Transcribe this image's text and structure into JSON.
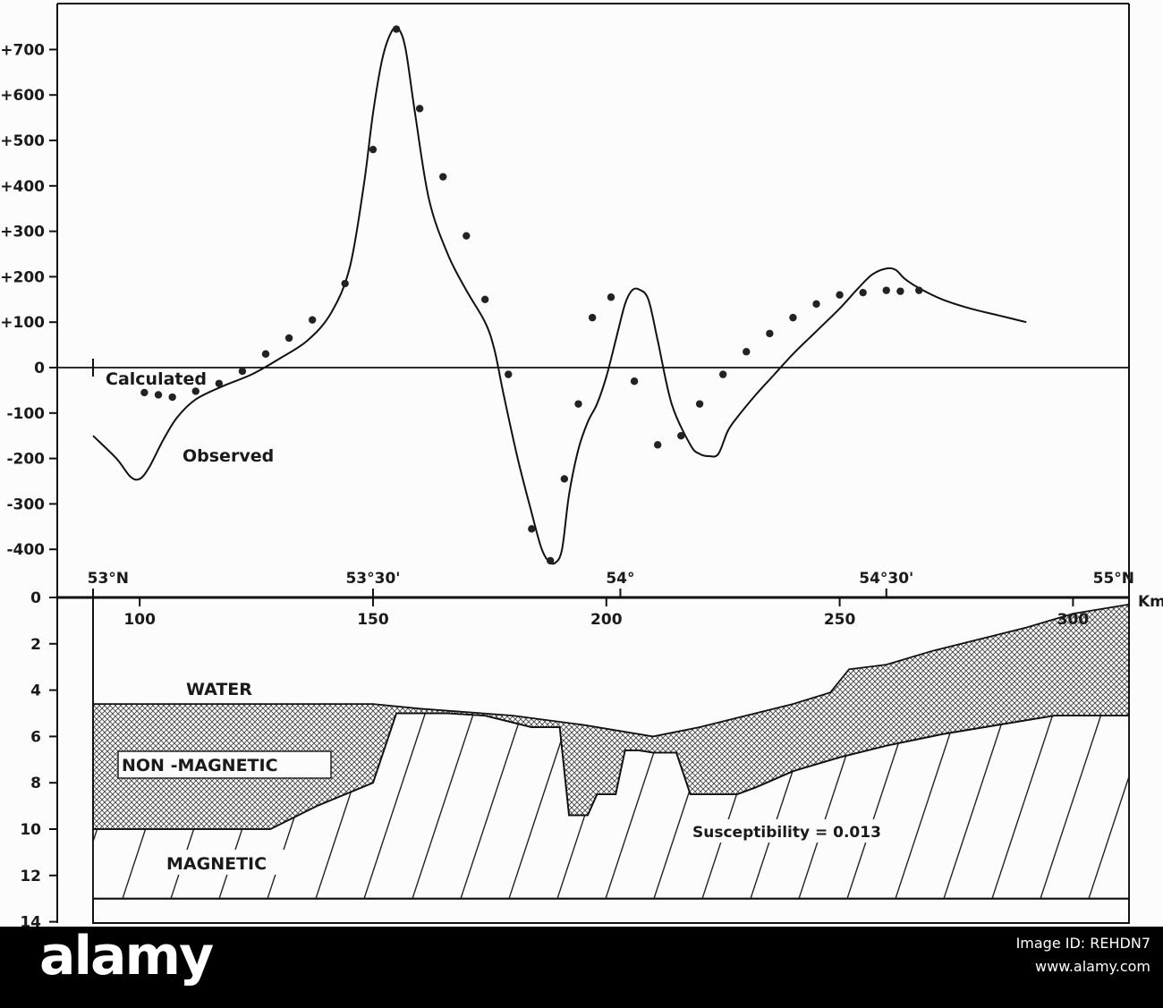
{
  "chart_data": [
    {
      "type": "line",
      "title": "",
      "xlabel": "",
      "ylabel": "",
      "ylim": [
        -450,
        750
      ],
      "xlim": [
        90,
        312
      ],
      "y_ticks": [
        "+700",
        "+600",
        "+500",
        "+400",
        "+300",
        "+200",
        "+100",
        "0",
        "-100",
        "-200",
        "-300",
        "-400"
      ],
      "y_tick_values": [
        700,
        600,
        500,
        400,
        300,
        200,
        100,
        0,
        -100,
        -200,
        -300,
        -400
      ],
      "annotations": [
        "Calculated",
        "Observed"
      ],
      "series": [
        {
          "name": "Observed",
          "style": "line",
          "x": [
            90,
            95,
            98,
            100,
            102,
            105,
            108,
            112,
            118,
            124,
            130,
            136,
            141,
            145,
            148,
            150,
            152,
            154,
            155.5,
            157,
            159,
            162,
            166,
            170,
            174,
            176,
            178,
            181,
            184,
            186,
            187.5,
            189,
            190.5,
            192,
            194,
            196,
            198,
            200,
            202,
            204,
            205.5,
            207,
            209,
            211,
            214,
            218,
            220,
            222,
            224,
            226,
            228,
            232,
            236,
            240,
            245,
            250,
            254,
            257,
            260,
            262,
            264,
            267,
            272,
            278,
            284,
            290
          ],
          "y": [
            -150,
            -200,
            -240,
            -245,
            -220,
            -160,
            -110,
            -70,
            -40,
            -15,
            20,
            60,
            120,
            220,
            400,
            560,
            680,
            740,
            745,
            700,
            560,
            370,
            250,
            170,
            100,
            40,
            -60,
            -200,
            -320,
            -395,
            -425,
            -430,
            -400,
            -280,
            -180,
            -120,
            -80,
            -20,
            60,
            140,
            170,
            172,
            150,
            60,
            -80,
            -170,
            -190,
            -195,
            -190,
            -140,
            -110,
            -60,
            -15,
            30,
            80,
            130,
            175,
            205,
            218,
            215,
            195,
            175,
            150,
            130,
            115,
            100
          ]
        },
        {
          "name": "Calculated",
          "style": "points",
          "x": [
            101,
            104,
            107,
            112,
            117,
            122,
            127,
            132,
            137,
            144,
            150,
            155,
            160,
            165,
            170,
            174,
            179,
            184,
            188,
            191,
            194,
            197,
            201,
            206,
            211,
            216,
            220,
            225,
            230,
            235,
            240,
            245,
            250,
            255,
            260,
            263,
            267
          ],
          "y": [
            -55,
            -60,
            -65,
            -52,
            -35,
            -8,
            30,
            65,
            105,
            185,
            480,
            745,
            570,
            420,
            290,
            150,
            -15,
            -355,
            -425,
            -245,
            -80,
            110,
            155,
            -30,
            -170,
            -150,
            -80,
            -15,
            35,
            75,
            110,
            140,
            160,
            165,
            170,
            168,
            170
          ]
        }
      ]
    },
    {
      "type": "area",
      "title": "",
      "xlabel": "Km",
      "ylabel": "",
      "ylim": [
        0,
        14
      ],
      "xlim": [
        90,
        312
      ],
      "y_ticks": [
        "0",
        "2",
        "4",
        "6",
        "8",
        "10",
        "12",
        "14"
      ],
      "x_ticks": [
        "100",
        "150",
        "200",
        "250",
        "300"
      ],
      "x_tick_values": [
        100,
        150,
        200,
        250,
        300
      ],
      "latitude_ticks": [
        "53°N",
        "53°30'",
        "54°",
        "54°30'",
        "55°N"
      ],
      "latitude_tick_km": [
        90,
        150,
        203,
        260,
        312
      ],
      "annotations": [
        "WATER",
        "NON -MAGNETIC",
        "MAGNETIC",
        "Susceptibility = 0.013"
      ],
      "series": [
        {
          "name": "WATER",
          "x": [
            90,
            150,
            160,
            180,
            195,
            210,
            220,
            228,
            240,
            248,
            252,
            260,
            270,
            290,
            300,
            312
          ],
          "y": [
            4.6,
            4.6,
            4.8,
            5.1,
            5.5,
            6.0,
            5.6,
            5.2,
            4.6,
            4.1,
            3.1,
            2.9,
            2.3,
            1.3,
            0.7,
            0.3
          ]
        },
        {
          "name": "NON -MAGNETIC",
          "x": [
            90,
            116,
            128,
            138,
            150,
            155,
            166,
            174,
            184,
            190,
            192,
            196,
            198,
            202,
            204,
            207,
            210,
            215,
            218,
            220,
            228,
            232,
            240,
            250,
            260,
            272,
            284,
            296,
            312
          ],
          "y": [
            10.0,
            10.0,
            10.0,
            9.0,
            8.0,
            5.0,
            5.0,
            5.1,
            5.6,
            5.6,
            9.4,
            9.4,
            8.5,
            8.5,
            6.6,
            6.6,
            6.7,
            6.7,
            8.5,
            8.5,
            8.5,
            8.2,
            7.5,
            6.9,
            6.4,
            5.9,
            5.5,
            5.1,
            5.1
          ]
        },
        {
          "name": "MAGNETIC",
          "x": [
            90,
            312
          ],
          "y": [
            13.0,
            13.0
          ]
        }
      ]
    }
  ],
  "banner": {
    "brand": "alamy",
    "stock_id_label": "Image ID: REHDN7",
    "site": "www.alamy.com"
  }
}
